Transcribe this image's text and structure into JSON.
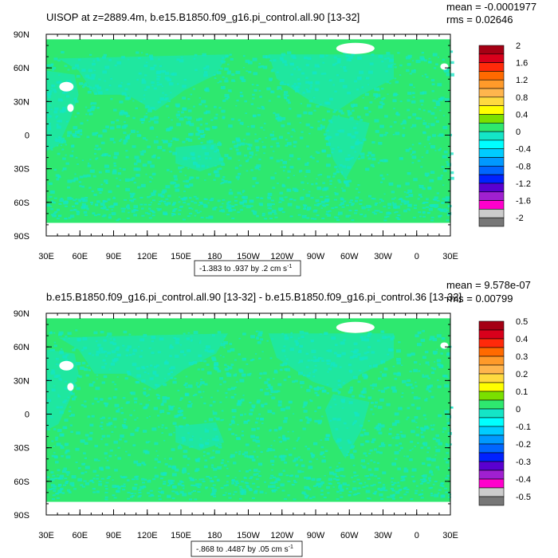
{
  "colors": {
    "ocean": "#2ee86f",
    "ocean_light": "#14e5c6",
    "land": "#ffffff",
    "frame": "#000000"
  },
  "chart_data": [
    {
      "type": "heatmap",
      "title": "UISOP at z=2889.4m, b.e15.B1850.f09_g16.pi_control.all.90 [13-32]",
      "stats": {
        "mean": "mean = -0.0001977",
        "rms": "rms = 0.02646"
      },
      "x_ticks": [
        "30E",
        "60E",
        "90E",
        "120E",
        "150E",
        "180",
        "150W",
        "120W",
        "90W",
        "60W",
        "30W",
        "0",
        "30E"
      ],
      "y_ticks": [
        "90N",
        "60N",
        "30N",
        "0",
        "30S",
        "60S",
        "90S"
      ],
      "contour_info": "-1.383 to .937 by .2 cm s",
      "contour_exp": "-1",
      "colorbar_labels": [
        "2",
        "1.6",
        "1.2",
        "0.8",
        "0.4",
        "0",
        "-0.4",
        "-0.8",
        "-1.2",
        "-1.6",
        "-2"
      ],
      "colorbar_colors": [
        "#a50014",
        "#d8001b",
        "#ff2a0a",
        "#ff6a00",
        "#ff9a2a",
        "#ffb54d",
        "#ffda40",
        "#ffff00",
        "#7ae000",
        "#2ee86f",
        "#14e5c6",
        "#00ffff",
        "#00ccff",
        "#0099ff",
        "#0066ff",
        "#0022ff",
        "#5a00d0",
        "#a020d0",
        "#ff00cc",
        "#cccccc",
        "#777777"
      ]
    },
    {
      "type": "heatmap",
      "title": "b.e15.B1850.f09_g16.pi_control.all.90 [13-32] - b.e15.B1850.f09_g16.pi_control.36 [13-32]",
      "stats": {
        "mean": "mean = 9.578e-07",
        "rms": "rms = 0.00799"
      },
      "x_ticks": [
        "30E",
        "60E",
        "90E",
        "120E",
        "150E",
        "180",
        "150W",
        "120W",
        "90W",
        "60W",
        "30W",
        "0",
        "30E"
      ],
      "y_ticks": [
        "90N",
        "60N",
        "30N",
        "0",
        "30S",
        "60S",
        "90S"
      ],
      "contour_info": "-.868 to .4487 by .05 cm s",
      "contour_exp": "-1",
      "colorbar_labels": [
        "0.5",
        "0.4",
        "0.3",
        "0.2",
        "0.1",
        "0",
        "-0.1",
        "-0.2",
        "-0.3",
        "-0.4",
        "-0.5"
      ],
      "colorbar_colors": [
        "#a50014",
        "#d8001b",
        "#ff2a0a",
        "#ff6a00",
        "#ff9a2a",
        "#ffb54d",
        "#ffda40",
        "#ffff00",
        "#7ae000",
        "#2ee86f",
        "#14e5c6",
        "#00ffff",
        "#00ccff",
        "#0099ff",
        "#0066ff",
        "#0022ff",
        "#5a00d0",
        "#a020d0",
        "#ff00cc",
        "#cccccc",
        "#777777"
      ]
    }
  ]
}
